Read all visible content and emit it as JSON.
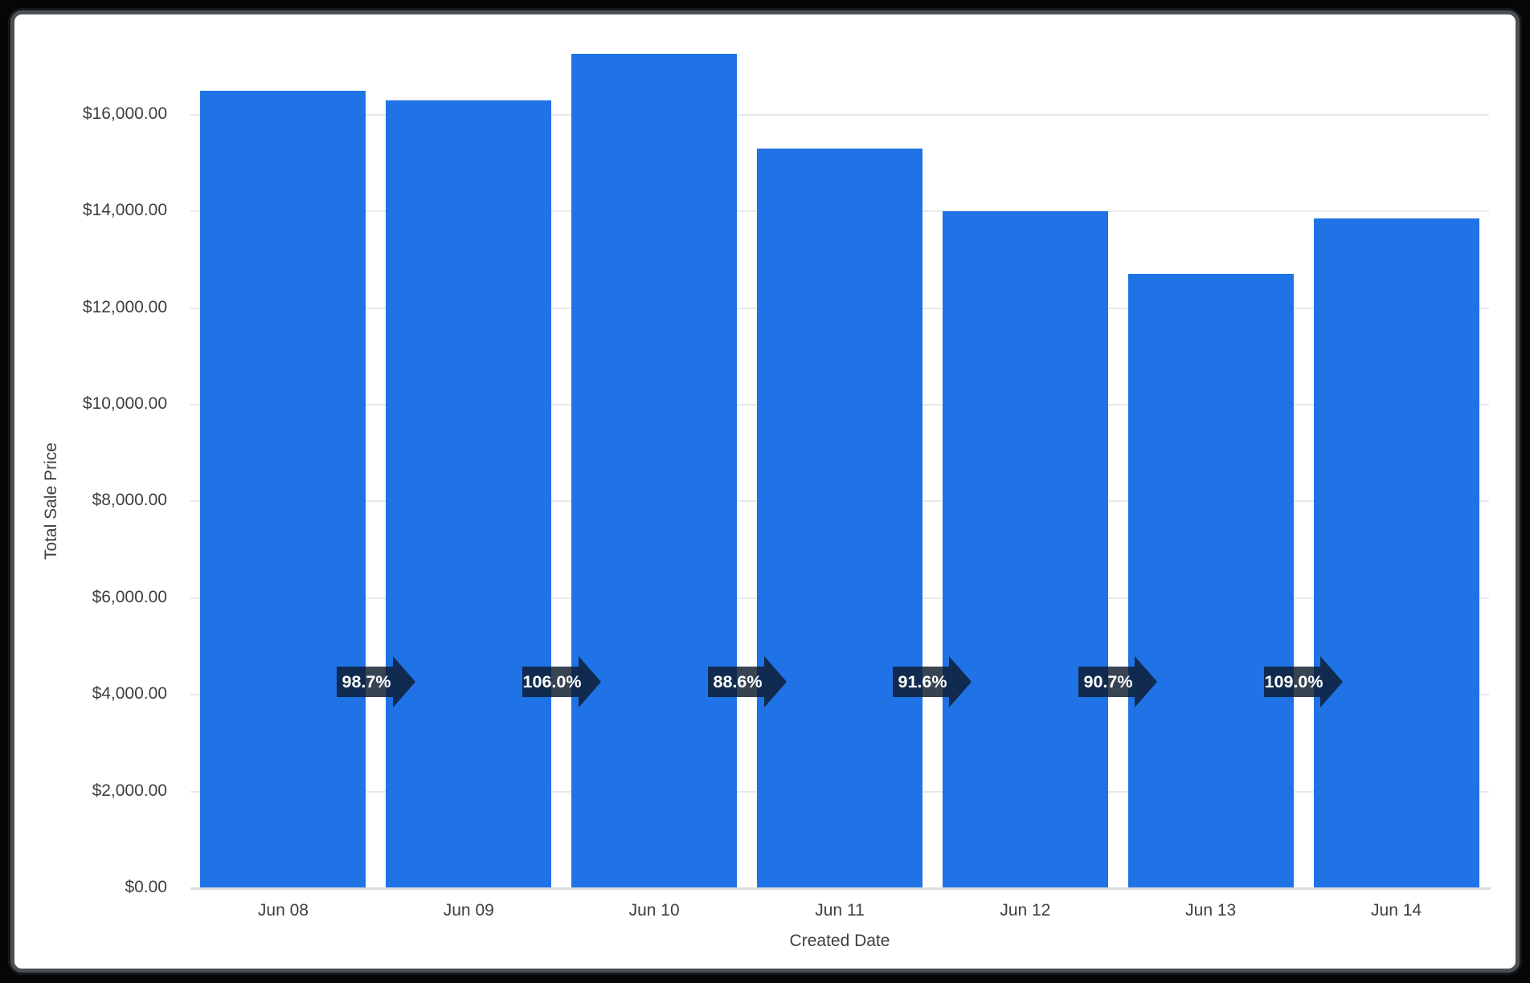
{
  "chart_data": {
    "type": "bar",
    "title": "",
    "xlabel": "Created Date",
    "ylabel": "Total Sale Price",
    "categories": [
      "Jun 08",
      "Jun 09",
      "Jun 10",
      "Jun 11",
      "Jun 12",
      "Jun 13",
      "Jun 14"
    ],
    "values": [
      16500,
      16290,
      17260,
      15295,
      14010,
      12705,
      13850
    ],
    "ylim": [
      0,
      17460
    ],
    "grid": true,
    "legend": "none",
    "y_ticks": [
      {
        "value": 0,
        "label": "$0.00"
      },
      {
        "value": 2000,
        "label": "$2,000.00"
      },
      {
        "value": 4000,
        "label": "$4,000.00"
      },
      {
        "value": 6000,
        "label": "$6,000.00"
      },
      {
        "value": 8000,
        "label": "$8,000.00"
      },
      {
        "value": 10000,
        "label": "$10,000.00"
      },
      {
        "value": 12000,
        "label": "$12,000.00"
      },
      {
        "value": 14000,
        "label": "$14,000.00"
      },
      {
        "value": 16000,
        "label": "$16,000.00"
      }
    ],
    "bar_color": "#1f73e6",
    "growth_arrows": {
      "labels": [
        "98.7%",
        "106.0%",
        "88.6%",
        "91.6%",
        "90.7%",
        "109.0%"
      ],
      "fill": "rgba(13,27,45,0.82)",
      "text_color": "#ffffff",
      "value_y": 4270
    }
  }
}
